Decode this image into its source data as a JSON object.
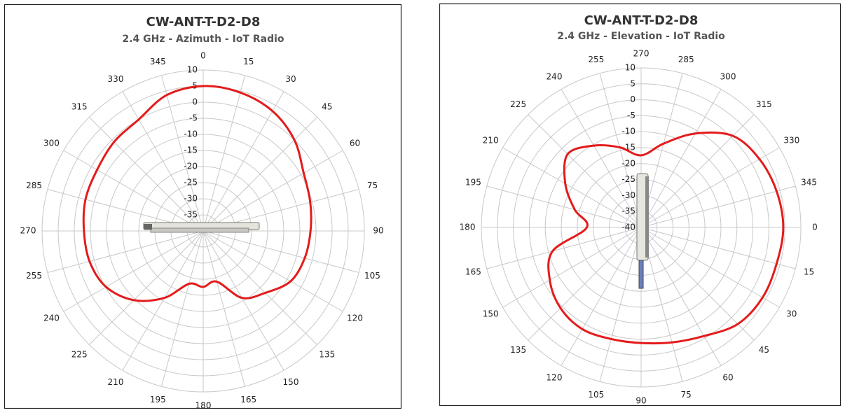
{
  "chart_data": [
    {
      "type": "polar",
      "title": "CW-ANT-T-D2-D8",
      "subtitle": "2.4 GHz - Azimuth - IoT Radio",
      "theta_zero": "N",
      "direction": "clockwise",
      "color": "#e41b1b",
      "grid": true,
      "theta": [
        0,
        15,
        30,
        45,
        60,
        75,
        90,
        105,
        120,
        135,
        150,
        165,
        180,
        195,
        210,
        225,
        240,
        255,
        270,
        285,
        300,
        315,
        330,
        345
      ],
      "values": [
        5,
        4.5,
        3,
        0,
        -4,
        -5.6,
        -6.7,
        -7.4,
        -8.7,
        -12.8,
        -16,
        -23.7,
        -22.6,
        -23,
        -16,
        -9.6,
        -5.2,
        -3.5,
        -3,
        -2.2,
        -2,
        -0.9,
        0,
        3.7
      ],
      "rlim": [
        -40,
        10
      ],
      "rticks": [
        -35,
        -30,
        -25,
        -20,
        -15,
        -10,
        -5,
        0,
        5,
        10
      ]
    },
    {
      "type": "polar",
      "title": "CW-ANT-T-D2-D8",
      "subtitle": "2.4 GHz - Elevation - IoT Radio",
      "theta_zero": "E",
      "direction": "clockwise",
      "color": "#e41b1b",
      "grid": true,
      "theta": [
        0,
        15,
        30,
        45,
        60,
        75,
        90,
        105,
        120,
        135,
        150,
        165,
        180,
        195,
        210,
        225,
        240,
        255,
        270,
        285,
        300,
        315,
        330,
        345
      ],
      "values": [
        4.5,
        3.9,
        3.9,
        2.8,
        -0.7,
        -2.7,
        -3.8,
        -3.8,
        -3.2,
        -4.3,
        -7,
        -11.3,
        -23,
        -18.5,
        -12.6,
        -7.5,
        -10.4,
        -14,
        -17.4,
        -12.8,
        -6,
        0.6,
        2.8,
        3.9
      ],
      "rlim": [
        -40,
        10
      ],
      "rticks": [
        -40,
        -35,
        -30,
        -25,
        -20,
        -15,
        -10,
        -5,
        0,
        5,
        10
      ]
    }
  ]
}
